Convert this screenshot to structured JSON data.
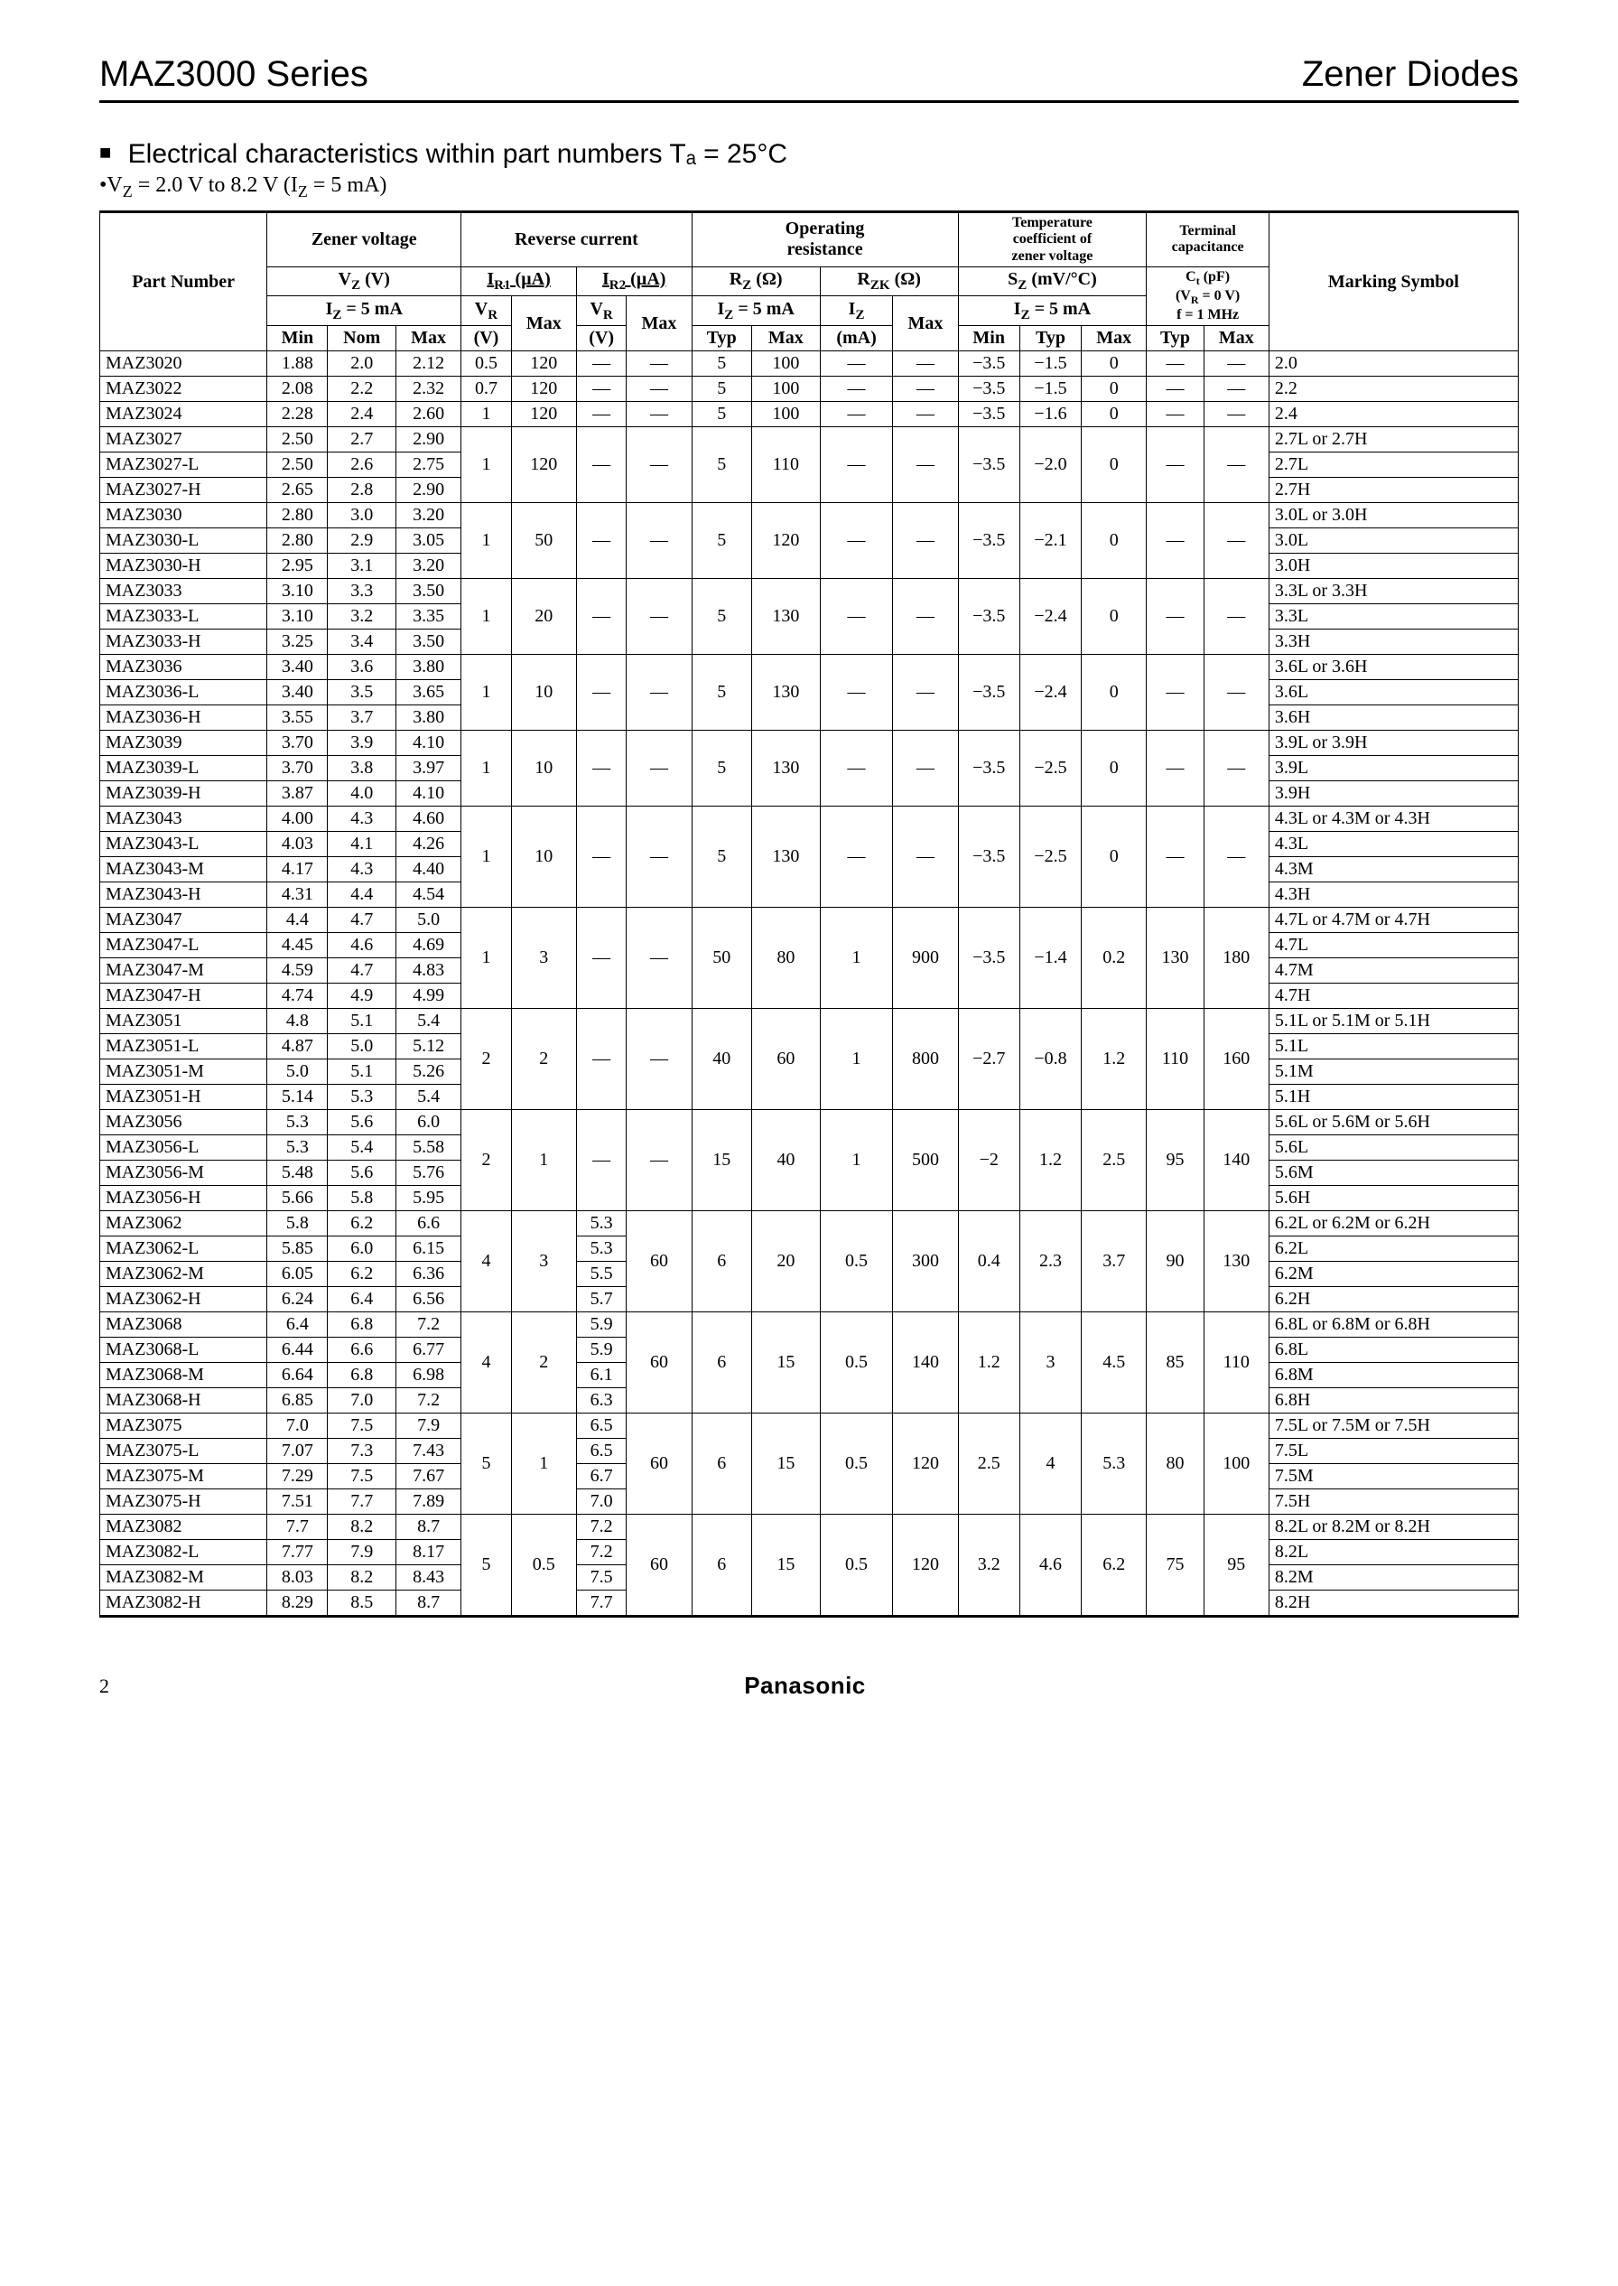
{
  "header": {
    "series": "MAZ3000 Series",
    "category": "Zener Diodes"
  },
  "section": {
    "square": "■",
    "title_prefix": "Electrical characteristics within part numbers  ",
    "title_ta": "Tₐ = 25°C",
    "cond_bullet": "•",
    "cond": "V",
    "cond_sub1": "Z",
    "cond_mid": " = 2.0 V to 8.2 V (I",
    "cond_sub2": "Z",
    "cond_end": " = 5 mA)"
  },
  "thead": {
    "part_number": "Part Number",
    "zener_voltage": "Zener voltage",
    "reverse_current": "Reverse current",
    "operating_resistance": "Operating\nresistance",
    "temp_coeff": "Temperature\ncoefficient of\nzener voltage",
    "terminal_cap": "Terminal\ncapacitance",
    "marking": "Marking Symbol",
    "vz": "V_Z (V)",
    "iz5": "I_Z = 5 mA",
    "ir1": "I_R1 (µA)",
    "ir2": "I_R2 (µA)",
    "vr": "V_R",
    "rz": "R_Z (Ω)",
    "rzk": "R_ZK (Ω)",
    "iz": "I_Z",
    "sz": "S_Z (mV/°C)",
    "ct": "C_t (pF)",
    "ct_cond": "(V_R = 0 V)\nf = 1 MHz",
    "min": "Min",
    "nom": "Nom",
    "max": "Max",
    "typ": "Typ",
    "v": "(V)",
    "ma": "(mA)"
  },
  "groups": [
    {
      "rows": [
        {
          "pn": "MAZ3020",
          "vmin": "1.88",
          "vnom": "2.0",
          "vmax": "2.12",
          "ms": "2.0"
        },
        {
          "pn": "MAZ3022",
          "vmin": "2.08",
          "vnom": "2.2",
          "vmax": "2.32",
          "ms": "2.2"
        },
        {
          "pn": "MAZ3024",
          "vmin": "2.28",
          "vnom": "2.4",
          "vmax": "2.60",
          "ms": "2.4"
        }
      ],
      "split_vr1": [
        "0.5",
        "0.7",
        "1"
      ],
      "ir1max": "120",
      "vr2": "—",
      "ir2max": "—",
      "rz_typ": "5",
      "rz_max": "100",
      "rzk_ma": "—",
      "rzk_max": "—",
      "sz_min": "−3.5",
      "sz_typ": "−1.5",
      "sz_max": "0",
      "ct_typ": "—",
      "ct_max": "—",
      "per_row_sz": true,
      "per_row_rz": true
    },
    {
      "rows": [
        {
          "pn": "MAZ3027",
          "vmin": "2.50",
          "vnom": "2.7",
          "vmax": "2.90",
          "ms": "2.7L or 2.7H"
        },
        {
          "pn": "MAZ3027-L",
          "vmin": "2.50",
          "vnom": "2.6",
          "vmax": "2.75",
          "ms": "2.7L"
        },
        {
          "pn": "MAZ3027-H",
          "vmin": "2.65",
          "vnom": "2.8",
          "vmax": "2.90",
          "ms": "2.7H"
        }
      ],
      "vr1": "1",
      "ir1max": "120",
      "vr2": "—",
      "ir2max": "—",
      "rz_typ": "5",
      "rz_max": "110",
      "rzk_ma": "—",
      "rzk_max": "—",
      "sz_min": "−3.5",
      "sz_typ": "−2.0",
      "sz_max": "0",
      "ct_typ": "—",
      "ct_max": "—"
    },
    {
      "rows": [
        {
          "pn": "MAZ3030",
          "vmin": "2.80",
          "vnom": "3.0",
          "vmax": "3.20",
          "ms": "3.0L or 3.0H"
        },
        {
          "pn": "MAZ3030-L",
          "vmin": "2.80",
          "vnom": "2.9",
          "vmax": "3.05",
          "ms": "3.0L"
        },
        {
          "pn": "MAZ3030-H",
          "vmin": "2.95",
          "vnom": "3.1",
          "vmax": "3.20",
          "ms": "3.0H"
        }
      ],
      "vr1": "1",
      "ir1max": "50",
      "vr2": "—",
      "ir2max": "—",
      "rz_typ": "5",
      "rz_max": "120",
      "rzk_ma": "—",
      "rzk_max": "—",
      "sz_min": "−3.5",
      "sz_typ": "−2.1",
      "sz_max": "0",
      "ct_typ": "—",
      "ct_max": "—"
    },
    {
      "rows": [
        {
          "pn": "MAZ3033",
          "vmin": "3.10",
          "vnom": "3.3",
          "vmax": "3.50",
          "ms": "3.3L or 3.3H"
        },
        {
          "pn": "MAZ3033-L",
          "vmin": "3.10",
          "vnom": "3.2",
          "vmax": "3.35",
          "ms": "3.3L"
        },
        {
          "pn": "MAZ3033-H",
          "vmin": "3.25",
          "vnom": "3.4",
          "vmax": "3.50",
          "ms": "3.3H"
        }
      ],
      "vr1": "1",
      "ir1max": "20",
      "vr2": "—",
      "ir2max": "—",
      "rz_typ": "5",
      "rz_max": "130",
      "rzk_ma": "—",
      "rzk_max": "—",
      "sz_min": "−3.5",
      "sz_typ": "−2.4",
      "sz_max": "0",
      "ct_typ": "—",
      "ct_max": "—"
    },
    {
      "rows": [
        {
          "pn": "MAZ3036",
          "vmin": "3.40",
          "vnom": "3.6",
          "vmax": "3.80",
          "ms": "3.6L or 3.6H"
        },
        {
          "pn": "MAZ3036-L",
          "vmin": "3.40",
          "vnom": "3.5",
          "vmax": "3.65",
          "ms": "3.6L"
        },
        {
          "pn": "MAZ3036-H",
          "vmin": "3.55",
          "vnom": "3.7",
          "vmax": "3.80",
          "ms": "3.6H"
        }
      ],
      "vr1": "1",
      "ir1max": "10",
      "vr2": "—",
      "ir2max": "—",
      "rz_typ": "5",
      "rz_max": "130",
      "rzk_ma": "—",
      "rzk_max": "—",
      "sz_min": "−3.5",
      "sz_typ": "−2.4",
      "sz_max": "0",
      "ct_typ": "—",
      "ct_max": "—"
    },
    {
      "rows": [
        {
          "pn": "MAZ3039",
          "vmin": "3.70",
          "vnom": "3.9",
          "vmax": "4.10",
          "ms": "3.9L or 3.9H"
        },
        {
          "pn": "MAZ3039-L",
          "vmin": "3.70",
          "vnom": "3.8",
          "vmax": "3.97",
          "ms": "3.9L"
        },
        {
          "pn": "MAZ3039-H",
          "vmin": "3.87",
          "vnom": "4.0",
          "vmax": "4.10",
          "ms": "3.9H"
        }
      ],
      "vr1": "1",
      "ir1max": "10",
      "vr2": "—",
      "ir2max": "—",
      "rz_typ": "5",
      "rz_max": "130",
      "rzk_ma": "—",
      "rzk_max": "—",
      "sz_min": "−3.5",
      "sz_typ": "−2.5",
      "sz_max": "0",
      "ct_typ": "—",
      "ct_max": "—"
    },
    {
      "rows": [
        {
          "pn": "MAZ3043",
          "vmin": "4.00",
          "vnom": "4.3",
          "vmax": "4.60",
          "ms": "4.3L or 4.3M or 4.3H"
        },
        {
          "pn": "MAZ3043-L",
          "vmin": "4.03",
          "vnom": "4.1",
          "vmax": "4.26",
          "ms": "4.3L"
        },
        {
          "pn": "MAZ3043-M",
          "vmin": "4.17",
          "vnom": "4.3",
          "vmax": "4.40",
          "ms": "4.3M"
        },
        {
          "pn": "MAZ3043-H",
          "vmin": "4.31",
          "vnom": "4.4",
          "vmax": "4.54",
          "ms": "4.3H"
        }
      ],
      "vr1": "1",
      "ir1max": "10",
      "vr2": "—",
      "ir2max": "—",
      "rz_typ": "5",
      "rz_max": "130",
      "rzk_ma": "—",
      "rzk_max": "—",
      "sz_min": "−3.5",
      "sz_typ": "−2.5",
      "sz_max": "0",
      "ct_typ": "—",
      "ct_max": "—"
    },
    {
      "rows": [
        {
          "pn": "MAZ3047",
          "vmin": "4.4",
          "vnom": "4.7",
          "vmax": "5.0",
          "ms": "4.7L or 4.7M or 4.7H"
        },
        {
          "pn": "MAZ3047-L",
          "vmin": "4.45",
          "vnom": "4.6",
          "vmax": "4.69",
          "ms": "4.7L"
        },
        {
          "pn": "MAZ3047-M",
          "vmin": "4.59",
          "vnom": "4.7",
          "vmax": "4.83",
          "ms": "4.7M"
        },
        {
          "pn": "MAZ3047-H",
          "vmin": "4.74",
          "vnom": "4.9",
          "vmax": "4.99",
          "ms": "4.7H"
        }
      ],
      "vr1": "1",
      "ir1max": "3",
      "vr2": "—",
      "ir2max": "—",
      "rz_typ": "50",
      "rz_max": "80",
      "rzk_ma": "1",
      "rzk_max": "900",
      "sz_min": "−3.5",
      "sz_typ": "−1.4",
      "sz_max": "0.2",
      "ct_typ": "130",
      "ct_max": "180"
    },
    {
      "rows": [
        {
          "pn": "MAZ3051",
          "vmin": "4.8",
          "vnom": "5.1",
          "vmax": "5.4",
          "ms": "5.1L or 5.1M or 5.1H"
        },
        {
          "pn": "MAZ3051-L",
          "vmin": "4.87",
          "vnom": "5.0",
          "vmax": "5.12",
          "ms": "5.1L"
        },
        {
          "pn": "MAZ3051-M",
          "vmin": "5.0",
          "vnom": "5.1",
          "vmax": "5.26",
          "ms": "5.1M"
        },
        {
          "pn": "MAZ3051-H",
          "vmin": "5.14",
          "vnom": "5.3",
          "vmax": "5.4",
          "ms": "5.1H"
        }
      ],
      "vr1": "2",
      "ir1max": "2",
      "vr2": "—",
      "ir2max": "—",
      "rz_typ": "40",
      "rz_max": "60",
      "rzk_ma": "1",
      "rzk_max": "800",
      "sz_min": "−2.7",
      "sz_typ": "−0.8",
      "sz_max": "1.2",
      "ct_typ": "110",
      "ct_max": "160"
    },
    {
      "rows": [
        {
          "pn": "MAZ3056",
          "vmin": "5.3",
          "vnom": "5.6",
          "vmax": "6.0",
          "ms": "5.6L or 5.6M or 5.6H"
        },
        {
          "pn": "MAZ3056-L",
          "vmin": "5.3",
          "vnom": "5.4",
          "vmax": "5.58",
          "ms": "5.6L"
        },
        {
          "pn": "MAZ3056-M",
          "vmin": "5.48",
          "vnom": "5.6",
          "vmax": "5.76",
          "ms": "5.6M"
        },
        {
          "pn": "MAZ3056-H",
          "vmin": "5.66",
          "vnom": "5.8",
          "vmax": "5.95",
          "ms": "5.6H"
        }
      ],
      "vr1": "2",
      "ir1max": "1",
      "vr2": "—",
      "ir2max": "—",
      "rz_typ": "15",
      "rz_max": "40",
      "rzk_ma": "1",
      "rzk_max": "500",
      "sz_min": "−2",
      "sz_typ": "1.2",
      "sz_max": "2.5",
      "ct_typ": "95",
      "ct_max": "140"
    },
    {
      "rows": [
        {
          "pn": "MAZ3062",
          "vmin": "5.8",
          "vnom": "6.2",
          "vmax": "6.6",
          "ms": "6.2L or 6.2M or 6.2H",
          "vr2": "5.3"
        },
        {
          "pn": "MAZ3062-L",
          "vmin": "5.85",
          "vnom": "6.0",
          "vmax": "6.15",
          "ms": "6.2L",
          "vr2": "5.3"
        },
        {
          "pn": "MAZ3062-M",
          "vmin": "6.05",
          "vnom": "6.2",
          "vmax": "6.36",
          "ms": "6.2M",
          "vr2": "5.5"
        },
        {
          "pn": "MAZ3062-H",
          "vmin": "6.24",
          "vnom": "6.4",
          "vmax": "6.56",
          "ms": "6.2H",
          "vr2": "5.7"
        }
      ],
      "vr1": "4",
      "ir1max": "3",
      "ir2max": "60",
      "rz_typ": "6",
      "rz_max": "20",
      "rzk_ma": "0.5",
      "rzk_max": "300",
      "sz_min": "0.4",
      "sz_typ": "2.3",
      "sz_max": "3.7",
      "ct_typ": "90",
      "ct_max": "130",
      "per_row_vr2": true
    },
    {
      "rows": [
        {
          "pn": "MAZ3068",
          "vmin": "6.4",
          "vnom": "6.8",
          "vmax": "7.2",
          "ms": "6.8L or 6.8M or 6.8H",
          "vr2": "5.9"
        },
        {
          "pn": "MAZ3068-L",
          "vmin": "6.44",
          "vnom": "6.6",
          "vmax": "6.77",
          "ms": "6.8L",
          "vr2": "5.9"
        },
        {
          "pn": "MAZ3068-M",
          "vmin": "6.64",
          "vnom": "6.8",
          "vmax": "6.98",
          "ms": "6.8M",
          "vr2": "6.1"
        },
        {
          "pn": "MAZ3068-H",
          "vmin": "6.85",
          "vnom": "7.0",
          "vmax": "7.2",
          "ms": "6.8H",
          "vr2": "6.3"
        }
      ],
      "vr1": "4",
      "ir1max": "2",
      "ir2max": "60",
      "rz_typ": "6",
      "rz_max": "15",
      "rzk_ma": "0.5",
      "rzk_max": "140",
      "sz_min": "1.2",
      "sz_typ": "3",
      "sz_max": "4.5",
      "ct_typ": "85",
      "ct_max": "110",
      "per_row_vr2": true
    },
    {
      "rows": [
        {
          "pn": "MAZ3075",
          "vmin": "7.0",
          "vnom": "7.5",
          "vmax": "7.9",
          "ms": "7.5L or 7.5M or 7.5H",
          "vr2": "6.5"
        },
        {
          "pn": "MAZ3075-L",
          "vmin": "7.07",
          "vnom": "7.3",
          "vmax": "7.43",
          "ms": "7.5L",
          "vr2": "6.5"
        },
        {
          "pn": "MAZ3075-M",
          "vmin": "7.29",
          "vnom": "7.5",
          "vmax": "7.67",
          "ms": "7.5M",
          "vr2": "6.7"
        },
        {
          "pn": "MAZ3075-H",
          "vmin": "7.51",
          "vnom": "7.7",
          "vmax": "7.89",
          "ms": "7.5H",
          "vr2": "7.0"
        }
      ],
      "vr1": "5",
      "ir1max": "1",
      "ir2max": "60",
      "rz_typ": "6",
      "rz_max": "15",
      "rzk_ma": "0.5",
      "rzk_max": "120",
      "sz_min": "2.5",
      "sz_typ": "4",
      "sz_max": "5.3",
      "ct_typ": "80",
      "ct_max": "100",
      "per_row_vr2": true
    },
    {
      "rows": [
        {
          "pn": "MAZ3082",
          "vmin": "7.7",
          "vnom": "8.2",
          "vmax": "8.7",
          "ms": "8.2L or 8.2M or 8.2H",
          "vr2": "7.2"
        },
        {
          "pn": "MAZ3082-L",
          "vmin": "7.77",
          "vnom": "7.9",
          "vmax": "8.17",
          "ms": "8.2L",
          "vr2": "7.2"
        },
        {
          "pn": "MAZ3082-M",
          "vmin": "8.03",
          "vnom": "8.2",
          "vmax": "8.43",
          "ms": "8.2M",
          "vr2": "7.5"
        },
        {
          "pn": "MAZ3082-H",
          "vmin": "8.29",
          "vnom": "8.5",
          "vmax": "8.7",
          "ms": "8.2H",
          "vr2": "7.7"
        }
      ],
      "vr1": "5",
      "ir1max": "0.5",
      "ir2max": "60",
      "rz_typ": "6",
      "rz_max": "15",
      "rzk_ma": "0.5",
      "rzk_max": "120",
      "sz_min": "3.2",
      "sz_typ": "4.6",
      "sz_max": "6.2",
      "ct_typ": "75",
      "ct_max": "95",
      "per_row_vr2": true,
      "last": true
    }
  ],
  "footer": {
    "page": "2",
    "brand": "Panasonic"
  }
}
